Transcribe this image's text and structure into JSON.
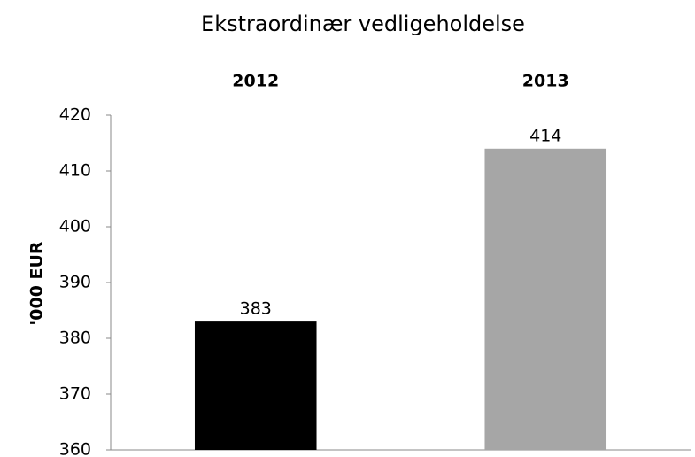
{
  "chart_data": {
    "type": "bar",
    "title": "Ekstraordinær vedligeholdelse",
    "categories": [
      "2012",
      "2013"
    ],
    "values": [
      383,
      414
    ],
    "colors": [
      "#000000",
      "#a6a6a6"
    ],
    "y_label": "'000 EUR",
    "ylim": [
      360,
      420
    ],
    "yticks": [
      360,
      370,
      380,
      390,
      400,
      410,
      420
    ],
    "grid": false
  }
}
